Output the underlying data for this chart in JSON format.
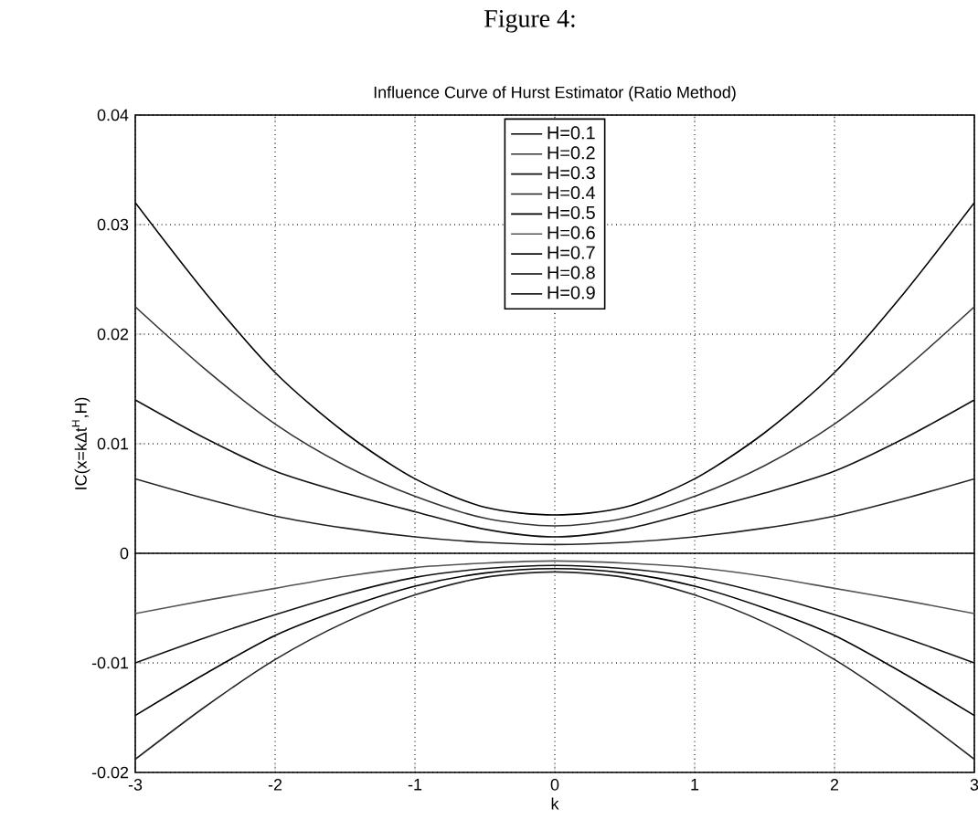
{
  "chart_data": {
    "type": "line",
    "title": "Influence Curve of Hurst Estimator (Ratio Method)",
    "annotations": [
      "Figure 4:"
    ],
    "xlabel": "k",
    "ylabel": "IC(x=kΔt$^{H}$,H)",
    "x": [
      -3,
      -2.5,
      -2,
      -1.5,
      -1,
      -0.5,
      0,
      0.5,
      1,
      1.5,
      2,
      2.5,
      3
    ],
    "series": [
      {
        "name": "H=0.1",
        "color": "#000000",
        "values": [
          0.032,
          0.0238,
          0.0165,
          0.011,
          0.0068,
          0.0042,
          0.0035,
          0.0042,
          0.0068,
          0.011,
          0.0165,
          0.0238,
          0.032
        ]
      },
      {
        "name": "H=0.2",
        "color": "#333333",
        "values": [
          0.0225,
          0.0168,
          0.0118,
          0.008,
          0.0052,
          0.0032,
          0.0025,
          0.0032,
          0.0052,
          0.008,
          0.0118,
          0.0168,
          0.0225
        ]
      },
      {
        "name": "H=0.3",
        "color": "#111111",
        "values": [
          0.014,
          0.0105,
          0.0075,
          0.0055,
          0.0038,
          0.0022,
          0.0015,
          0.0022,
          0.0038,
          0.0055,
          0.0075,
          0.0105,
          0.014
        ]
      },
      {
        "name": "H=0.4",
        "color": "#222222",
        "values": [
          0.0068,
          0.005,
          0.0034,
          0.0023,
          0.0015,
          0.001,
          0.0008,
          0.001,
          0.0015,
          0.0023,
          0.0034,
          0.005,
          0.0068
        ]
      },
      {
        "name": "H=0.5",
        "color": "#000000",
        "values": [
          0,
          0,
          0,
          0,
          0,
          0,
          0,
          0,
          0,
          0,
          0,
          0,
          0
        ]
      },
      {
        "name": "H=0.6",
        "color": "#555555",
        "values": [
          -0.0055,
          -0.0043,
          -0.0032,
          -0.0021,
          -0.0013,
          -0.0009,
          -0.0007,
          -0.0009,
          -0.0013,
          -0.0021,
          -0.0032,
          -0.0043,
          -0.0055
        ]
      },
      {
        "name": "H=0.7",
        "color": "#111111",
        "values": [
          -0.01,
          -0.0077,
          -0.0056,
          -0.0037,
          -0.0022,
          -0.0014,
          -0.0011,
          -0.0014,
          -0.0022,
          -0.0037,
          -0.0056,
          -0.0077,
          -0.01
        ]
      },
      {
        "name": "H=0.8",
        "color": "#000000",
        "values": [
          -0.0148,
          -0.011,
          -0.0075,
          -0.005,
          -0.003,
          -0.0018,
          -0.0014,
          -0.0018,
          -0.003,
          -0.005,
          -0.0075,
          -0.011,
          -0.0148
        ]
      },
      {
        "name": "H=0.9",
        "color": "#222222",
        "values": [
          -0.0188,
          -0.014,
          -0.0097,
          -0.0063,
          -0.0038,
          -0.0022,
          -0.0017,
          -0.0022,
          -0.0038,
          -0.0063,
          -0.0097,
          -0.014,
          -0.0188
        ]
      }
    ],
    "xlim": [
      -3,
      3
    ],
    "ylim": [
      -0.02,
      0.04
    ],
    "xticks": [
      -3,
      -2,
      -1,
      0,
      1,
      2,
      3
    ],
    "yticks": [
      -0.02,
      -0.01,
      0,
      0.01,
      0.02,
      0.03,
      0.04
    ],
    "grid": true,
    "legend": "top",
    "line_style": "solid",
    "marker": "none"
  }
}
